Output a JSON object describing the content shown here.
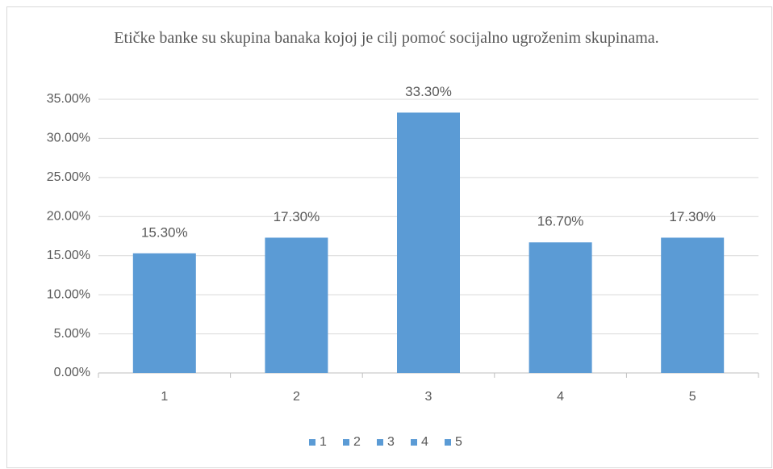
{
  "chart_data": {
    "type": "bar",
    "title": "Etičke banke su skupina banaka kojoj je cilj pomoć socijalno ugroženim skupinama.",
    "categories": [
      "1",
      "2",
      "3",
      "4",
      "5"
    ],
    "values": [
      15.3,
      17.3,
      33.3,
      16.7,
      17.3
    ],
    "value_labels": [
      "15.30%",
      "17.30%",
      "33.30%",
      "16.70%",
      "17.30%"
    ],
    "color": "#5b9bd5",
    "ylim": [
      0,
      35
    ],
    "yticks": [
      {
        "value": 0,
        "label": "0.00%"
      },
      {
        "value": 5,
        "label": "5.00%"
      },
      {
        "value": 10,
        "label": "10.00%"
      },
      {
        "value": 15,
        "label": "15.00%"
      },
      {
        "value": 20,
        "label": "20.00%"
      },
      {
        "value": 25,
        "label": "25.00%"
      },
      {
        "value": 30,
        "label": "30.00%"
      },
      {
        "value": 35,
        "label": "35.00%"
      }
    ],
    "grid": true,
    "legend": "bottom"
  }
}
